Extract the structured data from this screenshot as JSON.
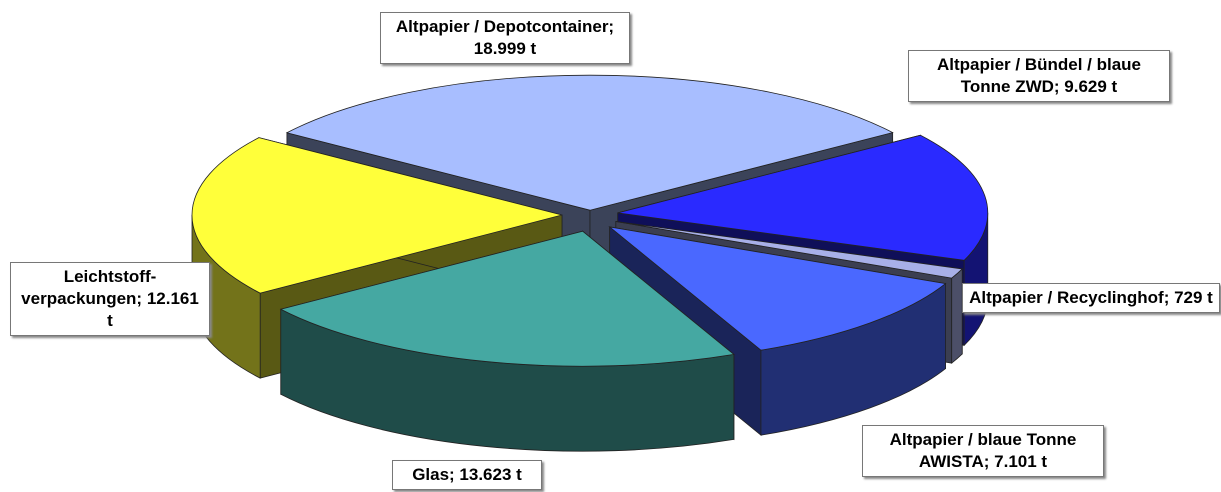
{
  "chart_data": {
    "type": "pie3d",
    "values": [
      18999,
      9629,
      729,
      7101,
      13623,
      12161
    ],
    "value_labels": [
      "Altpapier / Depotcontainer; 18.999 t",
      "Altpapier / Bündel / blaue Tonne ZWD; 9.629 t",
      "Altpapier / Recyclinghof; 729 t",
      "Altpapier / blaue Tonne AWISTA; 7.101 t",
      "Glas; 13.623 t",
      "Leichtstoff-verpackungen; 12.161 t"
    ],
    "colors": [
      "#a8beff",
      "#2a2aff",
      "#a8b0e8",
      "#4a68ff",
      "#45a8a2",
      "#ffff3a"
    ]
  }
}
